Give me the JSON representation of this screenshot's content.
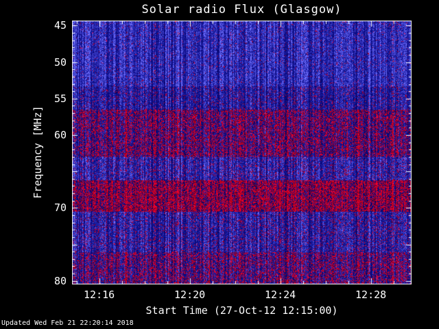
{
  "title": "Solar radio Flux (Glasgow)",
  "footer": {
    "updated": "Updated Wed Feb 21 22:20:14 2018"
  },
  "chart_data": {
    "type": "heatmap",
    "title": "Solar radio Flux (Glasgow)",
    "xlabel": "Start Time (27-Oct-12 12:15:00)",
    "ylabel": "Frequency [MHz]",
    "x_ticks": [
      {
        "minute": 16,
        "label": "12:16"
      },
      {
        "minute": 20,
        "label": "12:20"
      },
      {
        "minute": 24,
        "label": "12:24"
      },
      {
        "minute": 28,
        "label": "12:28"
      }
    ],
    "x_range": {
      "start_minute": 14.8,
      "end_minute": 29.8,
      "minor_step": 1
    },
    "y_ticks": [
      {
        "value": 45,
        "label": "45"
      },
      {
        "value": 50,
        "label": "50"
      },
      {
        "value": 55,
        "label": "55"
      },
      {
        "value": 60,
        "label": "60"
      },
      {
        "value": 65,
        "label": ""
      },
      {
        "value": 70,
        "label": "70"
      },
      {
        "value": 75,
        "label": ""
      },
      {
        "value": 80,
        "label": "80"
      }
    ],
    "y_range": [
      44.3,
      80.5
    ],
    "colors": {
      "background": "#000000",
      "axis": "#ffffff",
      "blue_base": "#2020cc",
      "red_streak": "#cc0000"
    },
    "bands": [
      {
        "freq_min": 44.3,
        "freq_max": 53.3,
        "red_fraction": 0.04,
        "blue_level": 1.0
      },
      {
        "freq_min": 53.3,
        "freq_max": 56.5,
        "red_fraction": 0.1,
        "blue_level": 0.8
      },
      {
        "freq_min": 56.5,
        "freq_max": 63.0,
        "red_fraction": 0.42,
        "blue_level": 0.65
      },
      {
        "freq_min": 63.0,
        "freq_max": 66.2,
        "red_fraction": 0.12,
        "blue_level": 0.9
      },
      {
        "freq_min": 66.2,
        "freq_max": 70.5,
        "red_fraction": 0.62,
        "blue_level": 0.5
      },
      {
        "freq_min": 70.5,
        "freq_max": 76.0,
        "red_fraction": 0.13,
        "blue_level": 0.85
      },
      {
        "freq_min": 76.0,
        "freq_max": 80.5,
        "red_fraction": 0.38,
        "blue_level": 0.7
      }
    ]
  }
}
